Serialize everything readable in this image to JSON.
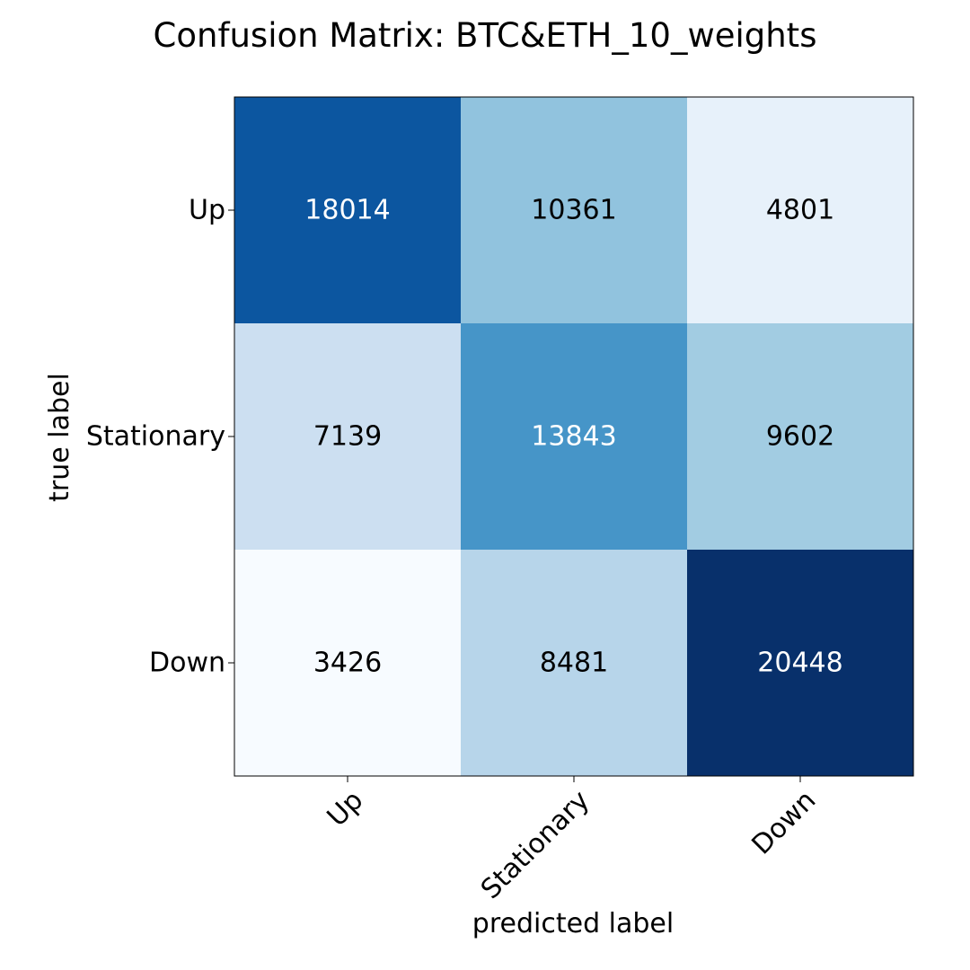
{
  "chart_data": {
    "type": "heatmap",
    "title": "Confusion Matrix: BTC&ETH_10_weights",
    "xlabel": "predicted label",
    "ylabel": "true label",
    "x_categories": [
      "Up",
      "Stationary",
      "Down"
    ],
    "y_categories": [
      "Up",
      "Stationary",
      "Down"
    ],
    "values": [
      [
        18014,
        10361,
        4801
      ],
      [
        7139,
        13843,
        9602
      ],
      [
        3426,
        8481,
        20448
      ]
    ],
    "colormap": "Blues",
    "colorbar": false,
    "grid": false,
    "text_color_light": "#ffffff",
    "text_color_dark": "#000000"
  }
}
